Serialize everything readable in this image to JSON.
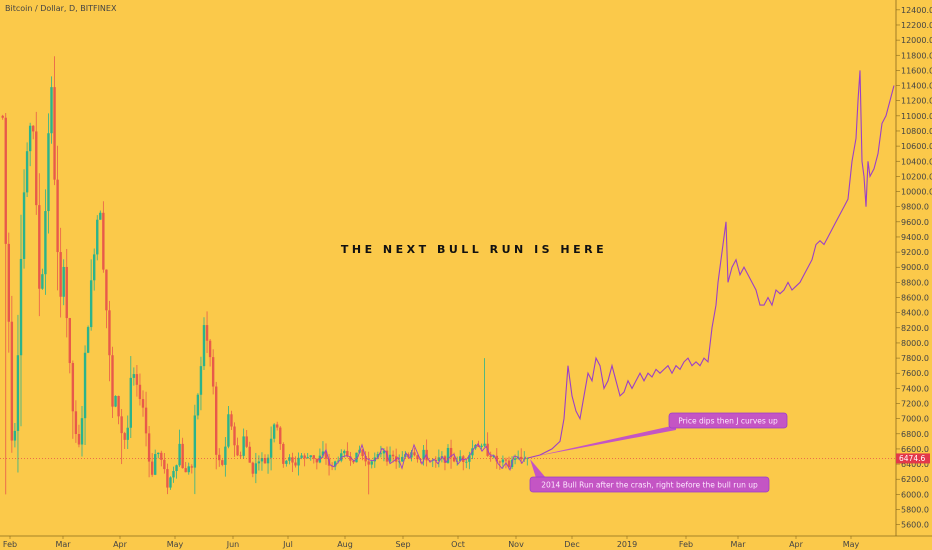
{
  "chart_data": {
    "type": "candlestick",
    "title": "Bitcoin / Dollar, D, BITFINEX",
    "headline": "THE NEXT BULL RUN IS HERE",
    "last_price": "6474.6",
    "y_ticks": [
      5600,
      5800,
      6000,
      6200,
      6400,
      6600,
      6800,
      7000,
      7200,
      7400,
      7600,
      7800,
      8000,
      8200,
      8400,
      8600,
      8800,
      9000,
      9200,
      9400,
      9600,
      9800,
      10000,
      10200,
      10400,
      10600,
      10800,
      11000,
      11200,
      11400,
      11600,
      11800,
      12000,
      12200,
      12400
    ],
    "y_tick_labels": [
      "5600.0",
      "5800.0",
      "6000.0",
      "6200.0",
      "6400.0",
      "6600.0",
      "6800.0",
      "7000.0",
      "7200.0",
      "7400.0",
      "7600.0",
      "7800.0",
      "8000.0",
      "8200.0",
      "8400.0",
      "8600.0",
      "8800.0",
      "9000.0",
      "9200.0",
      "9400.0",
      "9600.0",
      "9800.0",
      "10000.0",
      "10200.0",
      "10400.0",
      "10600.0",
      "10800.0",
      "11000.0",
      "11200.0",
      "11400.0",
      "11600.0",
      "11800.0",
      "12000.0",
      "12200.0",
      "12400.0"
    ],
    "ylim": [
      5450,
      12530
    ],
    "x_ticks": [
      "Feb",
      "Mar",
      "Apr",
      "May",
      "Jun",
      "Jul",
      "Aug",
      "Sep",
      "Oct",
      "Nov",
      "Dec",
      "2019",
      "Feb",
      "Mar",
      "Apr",
      "May"
    ],
    "price_anchors": [
      [
        0,
        11000
      ],
      [
        3,
        11900
      ],
      [
        7,
        9500
      ],
      [
        11,
        8200
      ],
      [
        15,
        6300
      ],
      [
        18,
        7300
      ],
      [
        22,
        8900
      ],
      [
        26,
        10000
      ],
      [
        30,
        10600
      ],
      [
        34,
        11200
      ],
      [
        38,
        9700
      ],
      [
        42,
        8500
      ],
      [
        46,
        9300
      ],
      [
        50,
        10800
      ],
      [
        54,
        11400
      ],
      [
        58,
        9500
      ],
      [
        62,
        8400
      ],
      [
        66,
        9200
      ],
      [
        70,
        7900
      ],
      [
        74,
        7200
      ],
      [
        78,
        6700
      ],
      [
        82,
        6600
      ],
      [
        86,
        7600
      ],
      [
        90,
        8300
      ],
      [
        94,
        8900
      ],
      [
        98,
        9600
      ],
      [
        102,
        9800
      ],
      [
        106,
        8900
      ],
      [
        110,
        8100
      ],
      [
        114,
        7100
      ],
      [
        118,
        7300
      ],
      [
        122,
        6900
      ],
      [
        126,
        6700
      ],
      [
        130,
        6900
      ],
      [
        134,
        7700
      ],
      [
        138,
        7400
      ],
      [
        142,
        7300
      ],
      [
        146,
        7100
      ],
      [
        150,
        6500
      ],
      [
        154,
        6300
      ],
      [
        158,
        6600
      ],
      [
        162,
        6500
      ],
      [
        166,
        6300
      ],
      [
        170,
        6100
      ],
      [
        174,
        6300
      ],
      [
        178,
        6400
      ],
      [
        182,
        6700
      ],
      [
        186,
        6200
      ],
      [
        190,
        6400
      ],
      [
        194,
        6350
      ],
      [
        198,
        7200
      ],
      [
        202,
        7500
      ],
      [
        206,
        8300
      ],
      [
        210,
        7900
      ],
      [
        214,
        7700
      ],
      [
        218,
        6500
      ],
      [
        222,
        6400
      ],
      [
        226,
        6400
      ],
      [
        230,
        7000
      ],
      [
        234,
        6900
      ],
      [
        238,
        6500
      ],
      [
        242,
        6500
      ],
      [
        246,
        6800
      ],
      [
        250,
        6500
      ],
      [
        254,
        6300
      ],
      [
        258,
        6400
      ],
      [
        262,
        6500
      ],
      [
        266,
        6400
      ],
      [
        270,
        6500
      ],
      [
        274,
        6900
      ],
      [
        278,
        7000
      ],
      [
        282,
        6600
      ],
      [
        286,
        6400
      ],
      [
        290,
        6500
      ],
      [
        294,
        6400
      ],
      [
        298,
        6400
      ],
      [
        302,
        6550
      ],
      [
        306,
        6450
      ],
      [
        310,
        6500
      ],
      [
        314,
        6550
      ],
      [
        318,
        6400
      ],
      [
        322,
        6500
      ],
      [
        326,
        6550
      ],
      [
        330,
        6400
      ],
      [
        334,
        6350
      ],
      [
        338,
        6450
      ],
      [
        342,
        6500
      ],
      [
        346,
        6550
      ],
      [
        350,
        6500
      ],
      [
        354,
        6450
      ],
      [
        358,
        6500
      ],
      [
        362,
        6600
      ],
      [
        366,
        6450
      ],
      [
        370,
        6400
      ],
      [
        374,
        6500
      ],
      [
        378,
        6450
      ],
      [
        382,
        6550
      ],
      [
        386,
        6600
      ],
      [
        390,
        6450
      ],
      [
        394,
        6500
      ],
      [
        398,
        6450
      ],
      [
        402,
        6400
      ],
      [
        406,
        6550
      ],
      [
        410,
        6500
      ],
      [
        414,
        6600
      ],
      [
        418,
        6500
      ],
      [
        422,
        6450
      ],
      [
        426,
        6550
      ],
      [
        430,
        6450
      ],
      [
        434,
        6450
      ],
      [
        438,
        6400
      ],
      [
        442,
        6500
      ],
      [
        446,
        6450
      ],
      [
        450,
        6550
      ],
      [
        454,
        6500
      ],
      [
        458,
        6400
      ],
      [
        462,
        6500
      ],
      [
        466,
        6450
      ],
      [
        470,
        6500
      ],
      [
        474,
        6600
      ],
      [
        478,
        6700
      ],
      [
        482,
        6600
      ],
      [
        486,
        6650
      ],
      [
        490,
        6550
      ],
      [
        494,
        6500
      ],
      [
        498,
        6450
      ],
      [
        502,
        6400
      ],
      [
        506,
        6450
      ],
      [
        510,
        6350
      ],
      [
        514,
        6450
      ],
      [
        518,
        6500
      ],
      [
        522,
        6450
      ],
      [
        526,
        6500
      ],
      [
        528,
        6474
      ]
    ],
    "spikes": [
      [
        4,
        6000
      ],
      [
        20,
        6900
      ],
      [
        120,
        6400
      ],
      [
        484,
        7800
      ],
      [
        368,
        6000
      ]
    ],
    "projection": [
      [
        528,
        6480
      ],
      [
        540,
        6520
      ],
      [
        552,
        6600
      ],
      [
        560,
        6700
      ],
      [
        564,
        7000
      ],
      [
        568,
        7700
      ],
      [
        572,
        7300
      ],
      [
        576,
        7100
      ],
      [
        580,
        7000
      ],
      [
        584,
        7300
      ],
      [
        588,
        7600
      ],
      [
        592,
        7500
      ],
      [
        596,
        7800
      ],
      [
        600,
        7700
      ],
      [
        604,
        7400
      ],
      [
        608,
        7500
      ],
      [
        612,
        7700
      ],
      [
        616,
        7500
      ],
      [
        620,
        7300
      ],
      [
        624,
        7350
      ],
      [
        628,
        7500
      ],
      [
        632,
        7400
      ],
      [
        636,
        7500
      ],
      [
        640,
        7600
      ],
      [
        644,
        7500
      ],
      [
        648,
        7600
      ],
      [
        652,
        7550
      ],
      [
        656,
        7650
      ],
      [
        660,
        7600
      ],
      [
        664,
        7650
      ],
      [
        668,
        7700
      ],
      [
        672,
        7600
      ],
      [
        676,
        7700
      ],
      [
        680,
        7650
      ],
      [
        684,
        7750
      ],
      [
        688,
        7800
      ],
      [
        692,
        7700
      ],
      [
        696,
        7750
      ],
      [
        700,
        7700
      ],
      [
        704,
        7800
      ],
      [
        708,
        7750
      ],
      [
        712,
        8200
      ],
      [
        716,
        8500
      ],
      [
        718,
        8800
      ],
      [
        722,
        9200
      ],
      [
        726,
        9600
      ],
      [
        728,
        8800
      ],
      [
        732,
        9000
      ],
      [
        736,
        9100
      ],
      [
        740,
        8900
      ],
      [
        744,
        9000
      ],
      [
        748,
        8900
      ],
      [
        752,
        8800
      ],
      [
        756,
        8700
      ],
      [
        760,
        8500
      ],
      [
        764,
        8500
      ],
      [
        768,
        8600
      ],
      [
        772,
        8500
      ],
      [
        776,
        8700
      ],
      [
        780,
        8650
      ],
      [
        784,
        8700
      ],
      [
        788,
        8800
      ],
      [
        792,
        8700
      ],
      [
        796,
        8750
      ],
      [
        800,
        8800
      ],
      [
        804,
        8900
      ],
      [
        808,
        9000
      ],
      [
        812,
        9100
      ],
      [
        816,
        9300
      ],
      [
        820,
        9350
      ],
      [
        824,
        9300
      ],
      [
        828,
        9400
      ],
      [
        832,
        9500
      ],
      [
        836,
        9600
      ],
      [
        840,
        9700
      ],
      [
        844,
        9800
      ],
      [
        848,
        9900
      ],
      [
        852,
        10400
      ],
      [
        856,
        10700
      ],
      [
        858,
        11200
      ],
      [
        860,
        11600
      ],
      [
        862,
        10400
      ],
      [
        864,
        10200
      ],
      [
        866,
        9800
      ],
      [
        868,
        10400
      ],
      [
        870,
        10200
      ],
      [
        874,
        10300
      ],
      [
        878,
        10500
      ],
      [
        882,
        10900
      ],
      [
        886,
        11000
      ],
      [
        890,
        11200
      ],
      [
        894,
        11400
      ]
    ],
    "annotations": [
      {
        "text": "Price dips then J curves up"
      },
      {
        "text": "2014 Bull Run after the crash, right before the bull run up"
      }
    ],
    "colors": {
      "background": "#fbc94a",
      "up": "#2bb38c",
      "down": "#e85a4a",
      "projection": "#9b3fc7",
      "callout": "#c455c4",
      "price_tag": "#e3384a"
    }
  }
}
